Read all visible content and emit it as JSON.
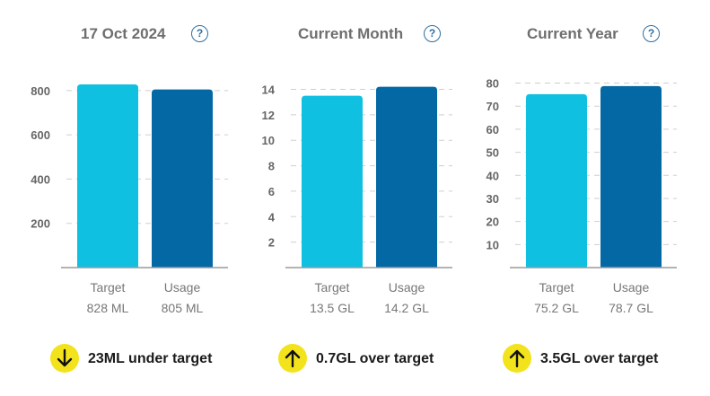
{
  "colors": {
    "target": "#10c0e0",
    "usage": "#0468a5",
    "badge": "#f3e31c",
    "grid": "#cfcfcf"
  },
  "chart_data": [
    {
      "type": "bar",
      "title": "17 Oct 2024",
      "categories": [
        "Target",
        "Usage"
      ],
      "values": [
        828,
        805
      ],
      "value_labels": [
        "828 ML",
        "805 ML"
      ],
      "yticks": [
        200,
        400,
        600,
        800
      ],
      "ylim": [
        0,
        840
      ],
      "status": {
        "direction": "down",
        "text": "23ML under target"
      }
    },
    {
      "type": "bar",
      "title": "Current Month",
      "categories": [
        "Target",
        "Usage"
      ],
      "values": [
        13.5,
        14.2
      ],
      "value_labels": [
        "13.5 GL",
        "14.2 GL"
      ],
      "yticks": [
        2,
        4,
        6,
        8,
        10,
        12,
        14
      ],
      "ylim": [
        0,
        14.6
      ],
      "status": {
        "direction": "up",
        "text": "0.7GL over target"
      }
    },
    {
      "type": "bar",
      "title": "Current Year",
      "categories": [
        "Target",
        "Usage"
      ],
      "values": [
        75.2,
        78.7
      ],
      "value_labels": [
        "75.2 GL",
        "78.7 GL"
      ],
      "yticks": [
        10,
        20,
        30,
        40,
        50,
        60,
        70,
        80
      ],
      "ylim": [
        0,
        80.6
      ],
      "status": {
        "direction": "up",
        "text": "3.5GL over target"
      }
    }
  ],
  "help_symbol": "?"
}
